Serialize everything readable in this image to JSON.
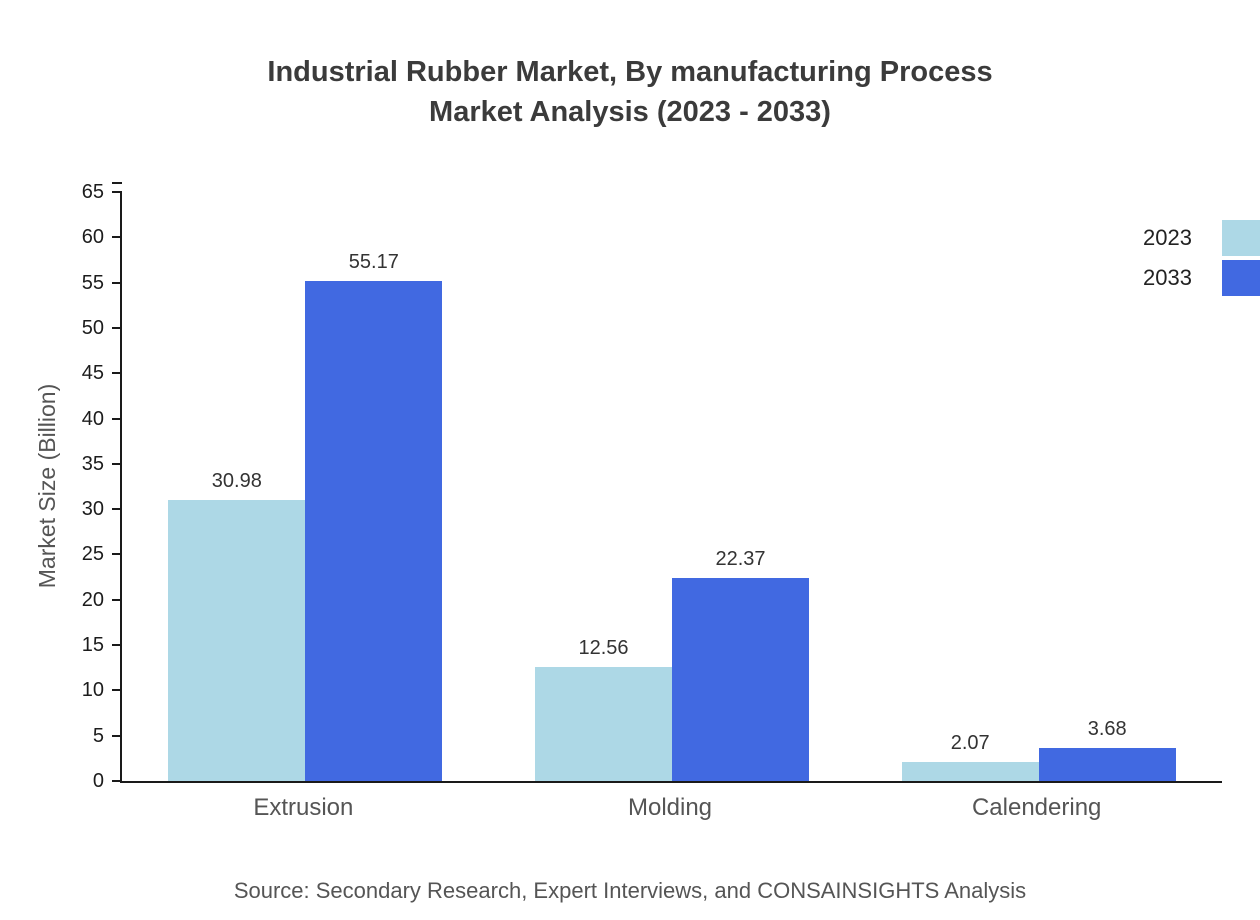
{
  "title": {
    "line1": "Industrial Rubber Market, By manufacturing Process",
    "line2": "Market Analysis (2023 - 2033)"
  },
  "chart_data": {
    "type": "bar",
    "categories": [
      "Extrusion",
      "Molding",
      "Calendering"
    ],
    "series": [
      {
        "name": "2023",
        "color": "#ADD8E6",
        "values": [
          30.98,
          12.56,
          2.07
        ]
      },
      {
        "name": "2033",
        "color": "#4169E1",
        "values": [
          55.17,
          22.37,
          3.68
        ]
      }
    ],
    "title": "Industrial Rubber Market, By manufacturing Process Market Analysis (2023 - 2033)",
    "xlabel": "",
    "ylabel": "Market Size (Billion)",
    "ylim": [
      0,
      65
    ],
    "ytick_step": 5,
    "grid": false,
    "legend_position": "top-right",
    "value_labels": true
  },
  "source": "Source: Secondary Research, Expert Interviews, and CONSAINSIGHTS Analysis"
}
